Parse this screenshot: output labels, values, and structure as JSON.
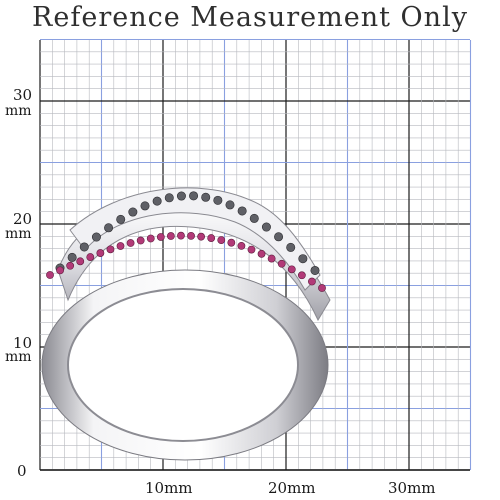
{
  "title": "Reference Measurement Only",
  "y_labels": [
    {
      "value": "30",
      "unit": "mm"
    },
    {
      "value": "20",
      "unit": "mm"
    },
    {
      "value": "10",
      "unit": "mm"
    },
    {
      "value": "0",
      "unit": ""
    }
  ],
  "x_labels": [
    "10mm",
    "20mm",
    "30mm"
  ],
  "colors": {
    "major_grid": "#1c1c1c",
    "minor_grid": "#b7b9bf",
    "blue_grid": "#8aa0e0",
    "ring_metal": "#e7e7e9",
    "ring_shadow": "#9a9aa0",
    "stone_pink": "#b23a78",
    "stone_gray": "#5f6066"
  },
  "image": {
    "subject": "ring-photo"
  }
}
